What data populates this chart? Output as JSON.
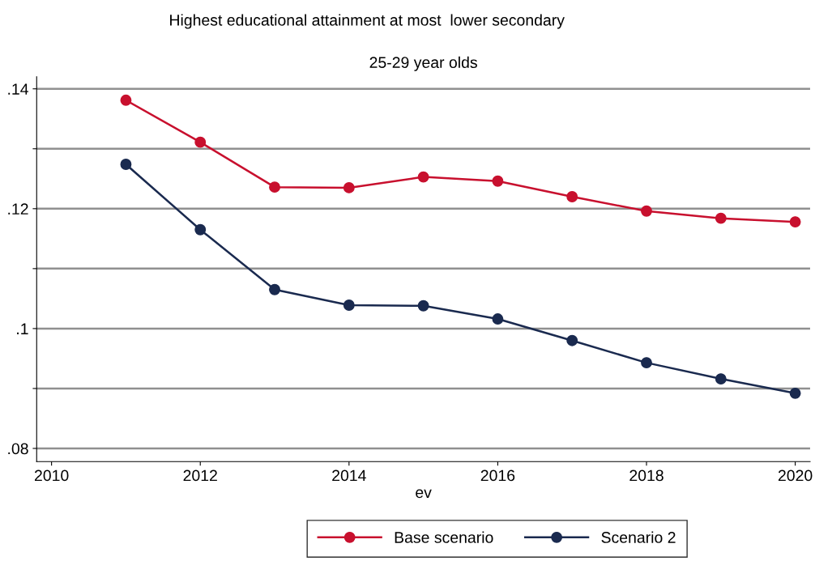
{
  "chart_data": {
    "type": "line",
    "title": "Highest educational attainment at most  lower secondary",
    "subtitle": "25-29 year olds",
    "xlabel": "ev",
    "x": [
      2011,
      2012,
      2013,
      2014,
      2015,
      2016,
      2017,
      2018,
      2019,
      2020
    ],
    "series": [
      {
        "name": "Base scenario",
        "color": "#c8102e",
        "values": [
          0.1381,
          0.1311,
          0.1236,
          0.1235,
          0.1253,
          0.1246,
          0.122,
          0.1196,
          0.1184,
          0.1178
        ]
      },
      {
        "name": "Scenario 2",
        "color": "#1a2a4f",
        "values": [
          0.1274,
          0.1165,
          0.1065,
          0.1039,
          0.1038,
          0.1016,
          0.098,
          0.0943,
          0.0916,
          0.0892
        ]
      }
    ],
    "xlim": [
      2009.8,
      2020.2
    ],
    "xticks": [
      2010,
      2012,
      2014,
      2016,
      2018,
      2020
    ],
    "ylim": [
      0.0778,
      0.142
    ],
    "yticks": [
      {
        "value": 0.08,
        "label": ".08"
      },
      {
        "value": 0.09,
        "label": null
      },
      {
        "value": 0.1,
        "label": ".1"
      },
      {
        "value": 0.11,
        "label": null
      },
      {
        "value": 0.12,
        "label": ".12"
      },
      {
        "value": 0.13,
        "label": null
      },
      {
        "value": 0.14,
        "label": ".14"
      }
    ],
    "grid": "y",
    "legend": "bottom",
    "marker": "circle",
    "line_style": "solid"
  }
}
